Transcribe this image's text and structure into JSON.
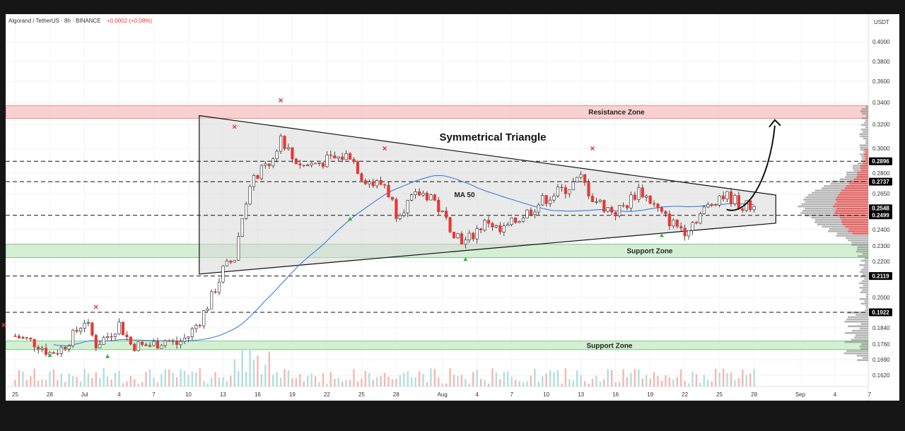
{
  "header": {
    "symbol": "Algorand / TetherUS · 8h · BINANCE",
    "change": "+0.0002 (+0.08%)"
  },
  "colors": {
    "bull": "#26a69a",
    "bear": "#e53935",
    "ma": "#3b7ddd",
    "resistance_fill": "#f8c8c8",
    "support_fill": "#cdeccd",
    "triangle_fill": "#d9d9d9",
    "cross": "#e53935",
    "arrow_up": "#2eb82e"
  },
  "chart_data": {
    "type": "candlestick",
    "currency_label": "USDT",
    "price_ticks": [
      "0.4000",
      "0.3800",
      "0.3600",
      "0.3400",
      "0.3200",
      "0.3000",
      "0.2800",
      "0.2650",
      "0.2400",
      "0.2300",
      "0.2200",
      "0.2000",
      "0.1840",
      "0.1760",
      "0.1690",
      "0.1620"
    ],
    "x_ticks": [
      "25",
      "28",
      "Jul",
      "4",
      "7",
      "10",
      "13",
      "16",
      "19",
      "22",
      "25",
      "28",
      "Aug",
      "4",
      "7",
      "10",
      "13",
      "16",
      "19",
      "22",
      "25",
      "28",
      "Sep",
      "4",
      "7"
    ],
    "price_tags": [
      {
        "price": 0.2896,
        "text": "0.2896"
      },
      {
        "price": 0.2737,
        "text": "0.2737"
      },
      {
        "price": 0.2548,
        "text": "0.2548",
        "sub": "05:40:55"
      },
      {
        "price": 0.2499,
        "text": "0.2499"
      },
      {
        "price": 0.2119,
        "text": "0.2119"
      },
      {
        "price": 0.1922,
        "text": "0.1922"
      }
    ],
    "dashed_levels": [
      0.2896,
      0.2737,
      0.2499,
      0.2119,
      0.1922
    ],
    "zones": [
      {
        "label": "Resistance Zone",
        "from": 0.3255,
        "to": 0.337,
        "kind": "resistance"
      },
      {
        "label": "Support Zone",
        "from": 0.2225,
        "to": 0.231,
        "kind": "support"
      },
      {
        "label": "Support Zone",
        "from": 0.1735,
        "to": 0.1775,
        "kind": "support"
      }
    ],
    "triangle": {
      "label": "Symmetrical Triangle",
      "top_start": {
        "date": "Jul 11",
        "price": 0.328
      },
      "top_end": {
        "date": "Aug 30",
        "price": 0.264
      },
      "bottom_start": {
        "date": "Jul 11",
        "price": 0.213
      },
      "bottom_end": {
        "date": "Aug 30",
        "price": 0.2445
      }
    },
    "ma_label": "MA 50",
    "projection_arrow": {
      "from": {
        "date": "Aug 25",
        "price": 0.254
      },
      "to": {
        "date": "Aug 29",
        "price": 0.324
      }
    },
    "swing_high_markers": [
      {
        "date": "Jun 24",
        "price": 0.1855
      },
      {
        "date": "Jul 2",
        "price": 0.195
      },
      {
        "date": "Jul 14",
        "price": 0.318
      },
      {
        "date": "Jul 18",
        "price": 0.342
      },
      {
        "date": "Jul 27",
        "price": 0.3
      },
      {
        "date": "Aug 14",
        "price": 0.3
      }
    ],
    "swing_low_markers": [
      {
        "date": "Jun 28",
        "price": 0.171
      },
      {
        "date": "Jul 3",
        "price": 0.1705
      },
      {
        "date": "Jul 24",
        "price": 0.2475
      },
      {
        "date": "Aug 3",
        "price": 0.2215
      },
      {
        "date": "Aug 20",
        "price": 0.2365
      }
    ]
  }
}
